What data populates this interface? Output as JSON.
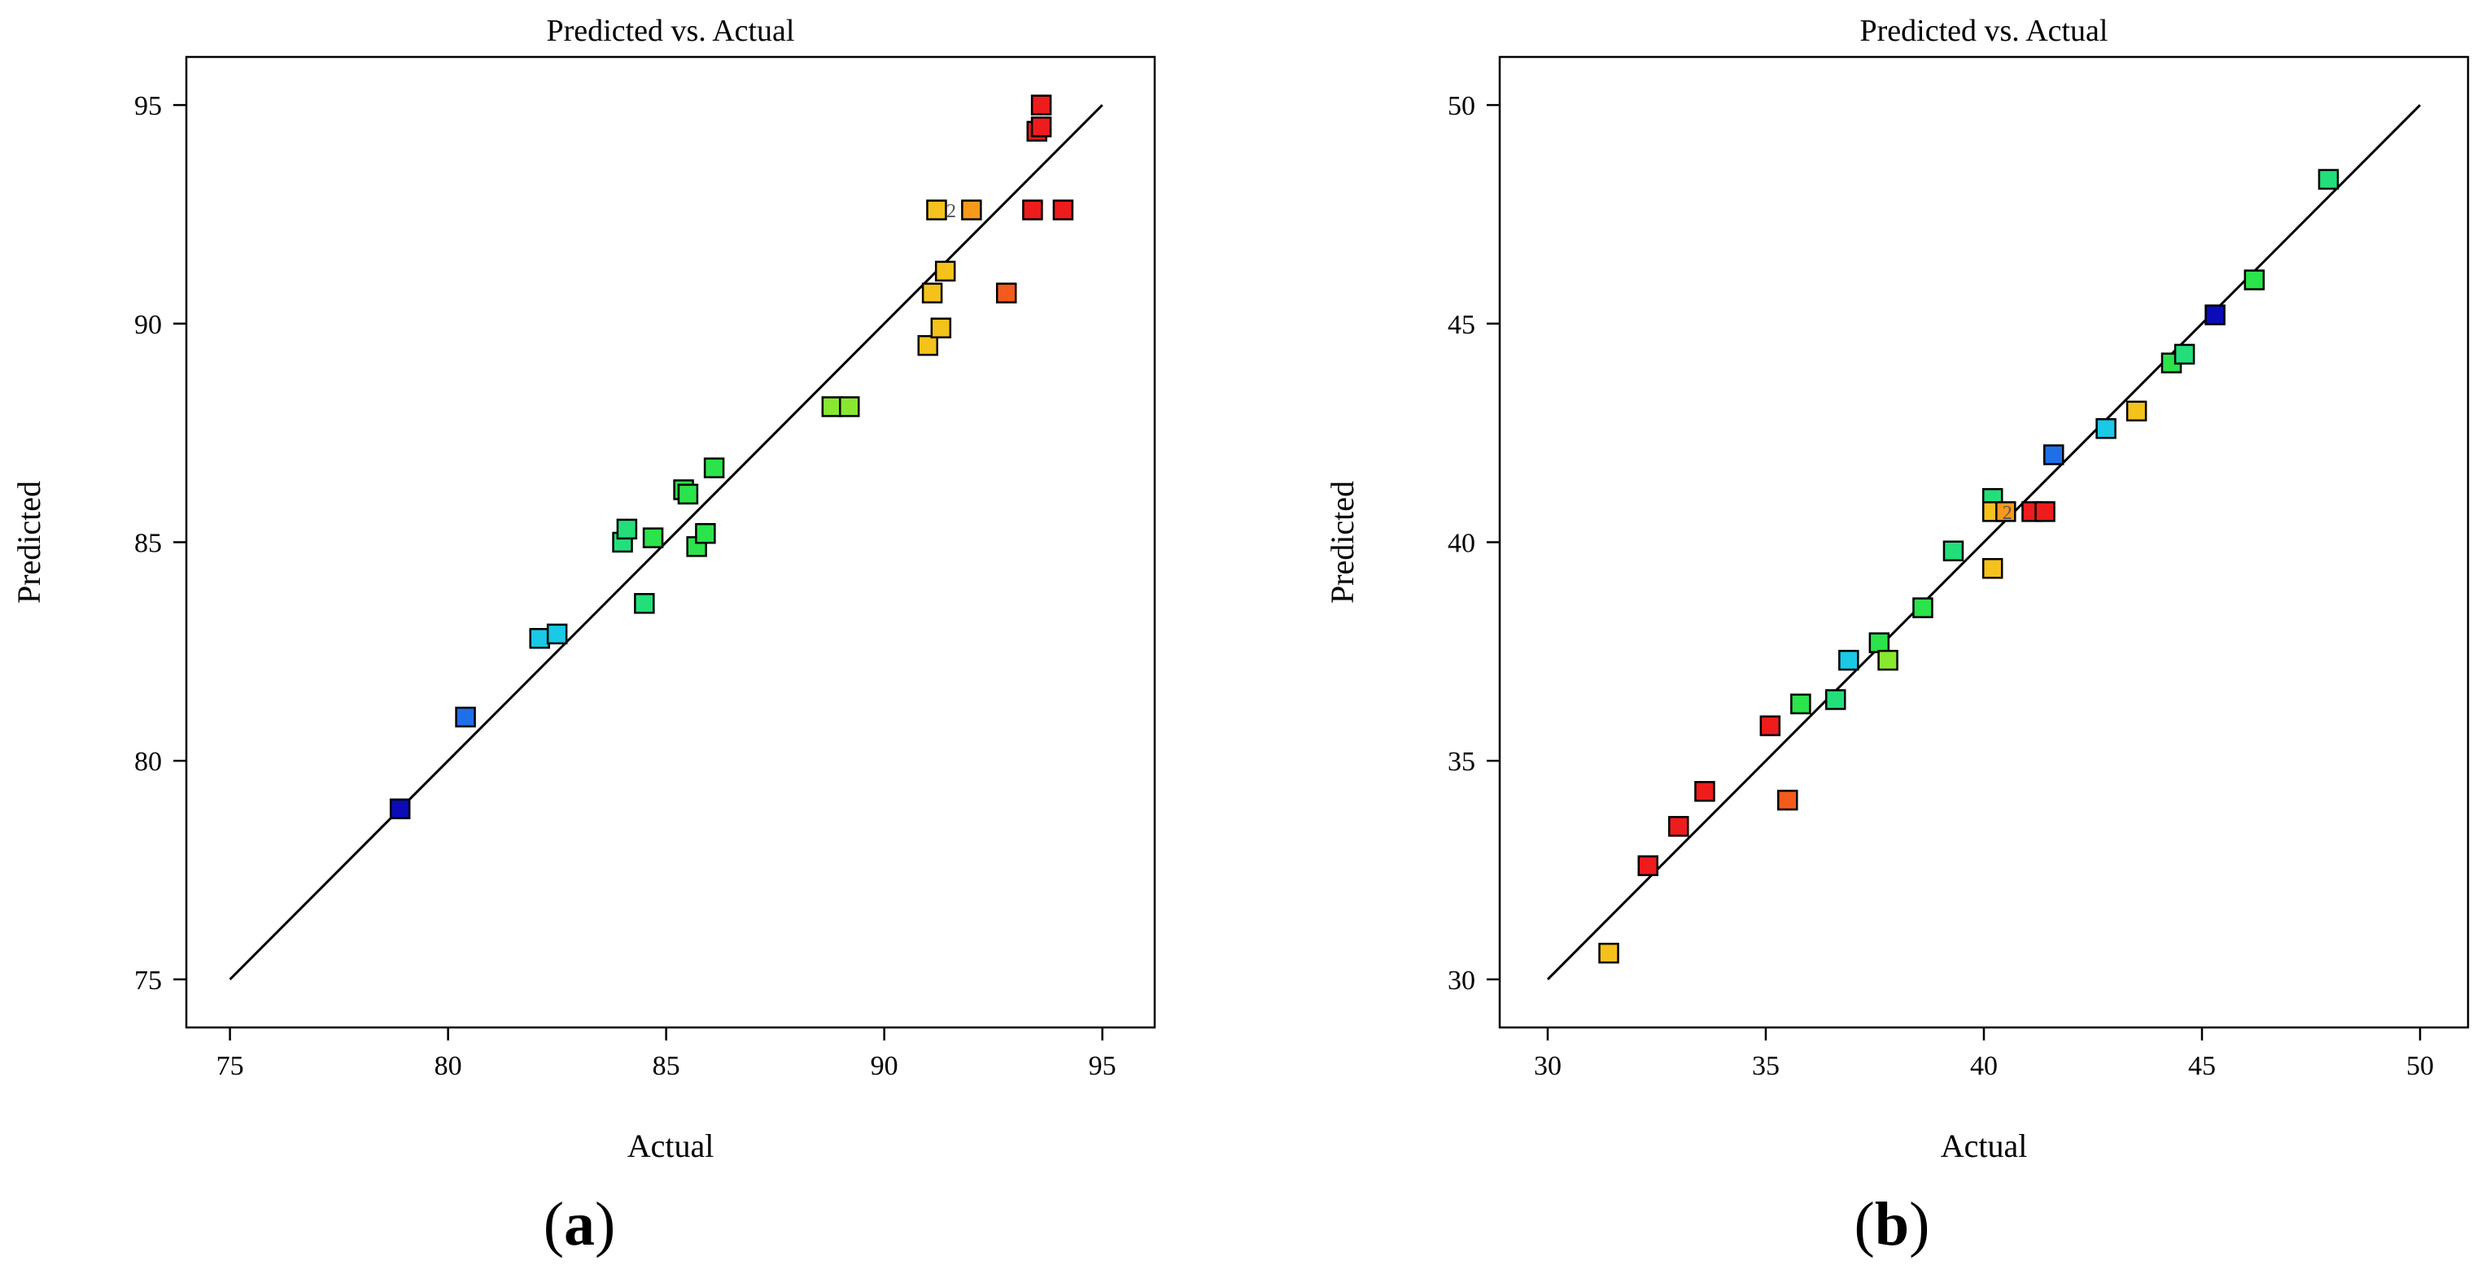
{
  "figure": {
    "panel_labels": [
      "(a)",
      "(b)"
    ]
  },
  "chart_data": [
    {
      "type": "scatter",
      "title": "Predicted vs. Actual",
      "xlabel": "Actual",
      "ylabel": "Predicted",
      "xlim": [
        74,
        96.2
      ],
      "ylim": [
        73.9,
        96.1
      ],
      "xticks": [
        75,
        80,
        85,
        90,
        95
      ],
      "yticks": [
        75,
        80,
        85,
        90,
        95
      ],
      "reference_line": {
        "from": [
          75,
          75
        ],
        "to": [
          95,
          95
        ]
      },
      "annotation": "2",
      "points": [
        {
          "x": 78.9,
          "y": 78.9,
          "color": "#0b0bb8"
        },
        {
          "x": 80.4,
          "y": 81.0,
          "color": "#1f6fe8"
        },
        {
          "x": 82.1,
          "y": 82.8,
          "color": "#19c9e6"
        },
        {
          "x": 82.5,
          "y": 82.9,
          "color": "#19c9e6"
        },
        {
          "x": 84.0,
          "y": 85.0,
          "color": "#22df7a"
        },
        {
          "x": 84.1,
          "y": 85.3,
          "color": "#22df7a"
        },
        {
          "x": 84.5,
          "y": 83.6,
          "color": "#22df7a"
        },
        {
          "x": 84.7,
          "y": 85.1,
          "color": "#2be34a"
        },
        {
          "x": 85.4,
          "y": 86.2,
          "color": "#2be34a"
        },
        {
          "x": 85.5,
          "y": 86.1,
          "color": "#2be34a"
        },
        {
          "x": 85.7,
          "y": 84.9,
          "color": "#2be34a"
        },
        {
          "x": 85.9,
          "y": 85.2,
          "color": "#2be34a"
        },
        {
          "x": 86.1,
          "y": 86.7,
          "color": "#2be34a"
        },
        {
          "x": 88.8,
          "y": 88.1,
          "color": "#88e830"
        },
        {
          "x": 89.2,
          "y": 88.1,
          "color": "#88e830"
        },
        {
          "x": 91.0,
          "y": 89.5,
          "color": "#f5c21b"
        },
        {
          "x": 91.1,
          "y": 90.7,
          "color": "#f5c21b"
        },
        {
          "x": 91.3,
          "y": 89.9,
          "color": "#f5c21b"
        },
        {
          "x": 91.4,
          "y": 91.2,
          "color": "#f5c21b"
        },
        {
          "x": 91.2,
          "y": 92.6,
          "color": "#f5c21b"
        },
        {
          "x": 92.0,
          "y": 92.6,
          "color": "#f79a1c"
        },
        {
          "x": 92.8,
          "y": 90.7,
          "color": "#f45a1c"
        },
        {
          "x": 93.4,
          "y": 92.6,
          "color": "#ee1c1c"
        },
        {
          "x": 93.5,
          "y": 94.4,
          "color": "#ee1c1c"
        },
        {
          "x": 93.6,
          "y": 94.5,
          "color": "#ee1c1c"
        },
        {
          "x": 93.6,
          "y": 95.0,
          "color": "#ee1c1c"
        },
        {
          "x": 94.1,
          "y": 92.6,
          "color": "#ee1c1c"
        }
      ]
    },
    {
      "type": "scatter",
      "title": "Predicted vs. Actual",
      "xlabel": "Actual",
      "ylabel": "Predicted",
      "xlim": [
        28.9,
        51.1
      ],
      "ylim": [
        28.9,
        51.1
      ],
      "xticks": [
        30,
        35,
        40,
        45,
        50
      ],
      "yticks": [
        30,
        35,
        40,
        45,
        50
      ],
      "reference_line": {
        "from": [
          30,
          30
        ],
        "to": [
          50,
          50
        ]
      },
      "annotation": "2",
      "points": [
        {
          "x": 31.4,
          "y": 30.6,
          "color": "#f5c21b"
        },
        {
          "x": 32.3,
          "y": 32.6,
          "color": "#ee1c1c"
        },
        {
          "x": 33.0,
          "y": 33.5,
          "color": "#ee1c1c"
        },
        {
          "x": 33.6,
          "y": 34.3,
          "color": "#ee1c1c"
        },
        {
          "x": 35.1,
          "y": 35.8,
          "color": "#ee1c1c"
        },
        {
          "x": 35.5,
          "y": 34.1,
          "color": "#f45a1c"
        },
        {
          "x": 35.8,
          "y": 36.3,
          "color": "#2be34a"
        },
        {
          "x": 36.6,
          "y": 36.4,
          "color": "#22df7a"
        },
        {
          "x": 36.9,
          "y": 37.3,
          "color": "#19c9e6"
        },
        {
          "x": 37.6,
          "y": 37.7,
          "color": "#2be34a"
        },
        {
          "x": 37.8,
          "y": 37.3,
          "color": "#88e830"
        },
        {
          "x": 38.6,
          "y": 38.5,
          "color": "#2be34a"
        },
        {
          "x": 39.3,
          "y": 39.8,
          "color": "#22df7a"
        },
        {
          "x": 40.2,
          "y": 41.0,
          "color": "#22df7a"
        },
        {
          "x": 40.2,
          "y": 40.7,
          "color": "#f5c21b"
        },
        {
          "x": 40.2,
          "y": 39.4,
          "color": "#f5c21b"
        },
        {
          "x": 40.5,
          "y": 40.7,
          "color": "#f79a1c"
        },
        {
          "x": 41.1,
          "y": 40.7,
          "color": "#ee1c1c"
        },
        {
          "x": 41.4,
          "y": 40.7,
          "color": "#ee1c1c"
        },
        {
          "x": 41.6,
          "y": 42.0,
          "color": "#1f6fe8"
        },
        {
          "x": 42.8,
          "y": 42.6,
          "color": "#19c9e6"
        },
        {
          "x": 43.5,
          "y": 43.0,
          "color": "#f5c21b"
        },
        {
          "x": 44.3,
          "y": 44.1,
          "color": "#2be34a"
        },
        {
          "x": 44.6,
          "y": 44.3,
          "color": "#22df7a"
        },
        {
          "x": 45.3,
          "y": 45.2,
          "color": "#0b0bb8"
        },
        {
          "x": 46.2,
          "y": 46.0,
          "color": "#2be34a"
        },
        {
          "x": 47.9,
          "y": 48.3,
          "color": "#22df7a"
        }
      ]
    }
  ]
}
